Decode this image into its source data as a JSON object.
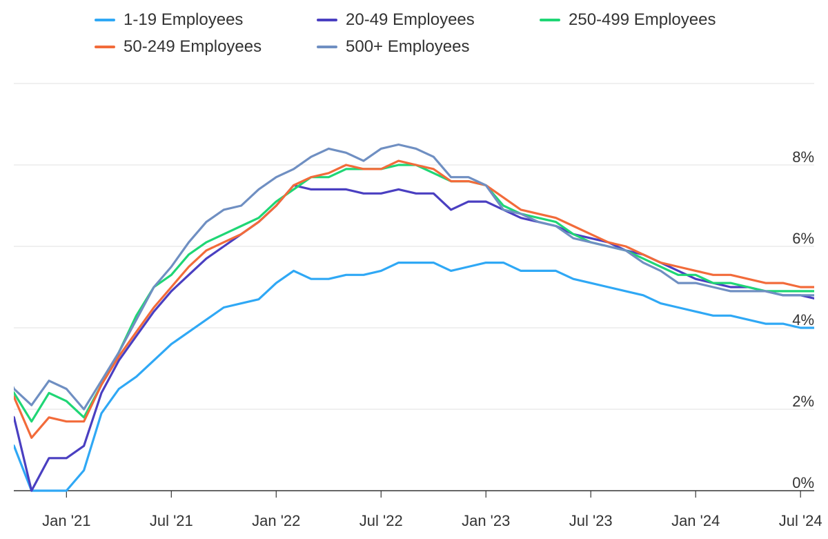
{
  "chart_data": {
    "type": "line",
    "title": "",
    "xlabel": "",
    "ylabel": "",
    "ylim": [
      0,
      10
    ],
    "y_ticks": [
      "0%",
      "2%",
      "4%",
      "6%",
      "8%"
    ],
    "y_axis_side": "right",
    "x_ticks": [
      "Jan '21",
      "Jul '21",
      "Jan '22",
      "Jul '22",
      "Jan '23",
      "Jul '23",
      "Jan '24",
      "Jul '24"
    ],
    "x_tick_dates": [
      "2021-01",
      "2021-07",
      "2022-01",
      "2022-07",
      "2023-01",
      "2023-07",
      "2024-01",
      "2024-07"
    ],
    "x_start": "2020-09",
    "x": [
      "2020-09",
      "2020-10",
      "2020-11",
      "2020-12",
      "2021-01",
      "2021-02",
      "2021-03",
      "2021-04",
      "2021-05",
      "2021-06",
      "2021-07",
      "2021-08",
      "2021-09",
      "2021-10",
      "2021-11",
      "2021-12",
      "2022-01",
      "2022-02",
      "2022-03",
      "2022-04",
      "2022-05",
      "2022-06",
      "2022-07",
      "2022-08",
      "2022-09",
      "2022-10",
      "2022-11",
      "2022-12",
      "2023-01",
      "2023-02",
      "2023-03",
      "2023-04",
      "2023-05",
      "2023-06",
      "2023-07",
      "2023-08",
      "2023-09",
      "2023-10",
      "2023-11",
      "2023-12",
      "2024-01",
      "2024-02",
      "2024-03",
      "2024-04",
      "2024-05",
      "2024-06",
      "2024-07",
      "2024-08"
    ],
    "grid": true,
    "legend_position": "top",
    "series": [
      {
        "name": "1-19 Employees",
        "color": "#2fa8f5",
        "values": [
          1.5,
          1.1,
          0.0,
          0.0,
          0.0,
          0.5,
          1.9,
          2.5,
          2.8,
          3.2,
          3.6,
          3.9,
          4.2,
          4.5,
          4.6,
          4.7,
          5.1,
          5.4,
          5.2,
          5.2,
          5.3,
          5.3,
          5.4,
          5.6,
          5.6,
          5.6,
          5.4,
          5.5,
          5.6,
          5.6,
          5.4,
          5.4,
          5.4,
          5.2,
          5.1,
          5.0,
          4.9,
          4.8,
          4.6,
          4.5,
          4.4,
          4.3,
          4.3,
          4.2,
          4.1,
          4.1,
          4.0,
          4.0
        ]
      },
      {
        "name": "20-49 Employees",
        "color": "#4a3fc1",
        "values": [
          2.2,
          1.8,
          0.0,
          0.8,
          0.8,
          1.1,
          2.4,
          3.2,
          3.8,
          4.4,
          4.9,
          5.3,
          5.7,
          6.0,
          6.3,
          6.6,
          7.0,
          7.5,
          7.4,
          7.4,
          7.4,
          7.3,
          7.3,
          7.4,
          7.3,
          7.3,
          6.9,
          7.1,
          7.1,
          6.9,
          6.7,
          6.6,
          6.5,
          6.3,
          6.2,
          6.1,
          5.9,
          5.8,
          5.6,
          5.4,
          5.2,
          5.1,
          5.0,
          5.0,
          4.9,
          4.8,
          4.8,
          4.7
        ]
      },
      {
        "name": "250-499 Employees",
        "color": "#1fd675",
        "values": [
          3.0,
          2.4,
          1.7,
          2.4,
          2.2,
          1.8,
          2.6,
          3.4,
          4.3,
          5.0,
          5.3,
          5.8,
          6.1,
          6.3,
          6.5,
          6.7,
          7.1,
          7.4,
          7.7,
          7.7,
          7.9,
          7.9,
          7.9,
          8.0,
          8.0,
          7.8,
          7.6,
          7.6,
          7.5,
          7.0,
          6.8,
          6.7,
          6.6,
          6.3,
          6.1,
          6.0,
          5.9,
          5.7,
          5.5,
          5.3,
          5.3,
          5.1,
          5.1,
          5.0,
          4.9,
          4.9,
          4.9,
          4.9
        ]
      },
      {
        "name": "50-249 Employees",
        "color": "#f26b3a",
        "values": [
          2.8,
          2.3,
          1.3,
          1.8,
          1.7,
          1.7,
          2.6,
          3.3,
          3.9,
          4.5,
          5.0,
          5.5,
          5.9,
          6.1,
          6.3,
          6.6,
          7.0,
          7.5,
          7.7,
          7.8,
          8.0,
          7.9,
          7.9,
          8.1,
          8.0,
          7.9,
          7.6,
          7.6,
          7.5,
          7.2,
          6.9,
          6.8,
          6.7,
          6.5,
          6.3,
          6.1,
          6.0,
          5.8,
          5.6,
          5.5,
          5.4,
          5.3,
          5.3,
          5.2,
          5.1,
          5.1,
          5.0,
          5.0
        ]
      },
      {
        "name": "500+ Employees",
        "color": "#6f8fc2",
        "values": [
          3.4,
          2.5,
          2.1,
          2.7,
          2.5,
          2.0,
          2.7,
          3.4,
          4.2,
          5.0,
          5.5,
          6.1,
          6.6,
          6.9,
          7.0,
          7.4,
          7.7,
          7.9,
          8.2,
          8.4,
          8.3,
          8.1,
          8.4,
          8.5,
          8.4,
          8.2,
          7.7,
          7.7,
          7.5,
          6.9,
          6.8,
          6.6,
          6.5,
          6.2,
          6.1,
          6.0,
          5.9,
          5.6,
          5.4,
          5.1,
          5.1,
          5.0,
          4.9,
          4.9,
          4.9,
          4.8,
          4.8,
          4.8
        ]
      }
    ]
  }
}
